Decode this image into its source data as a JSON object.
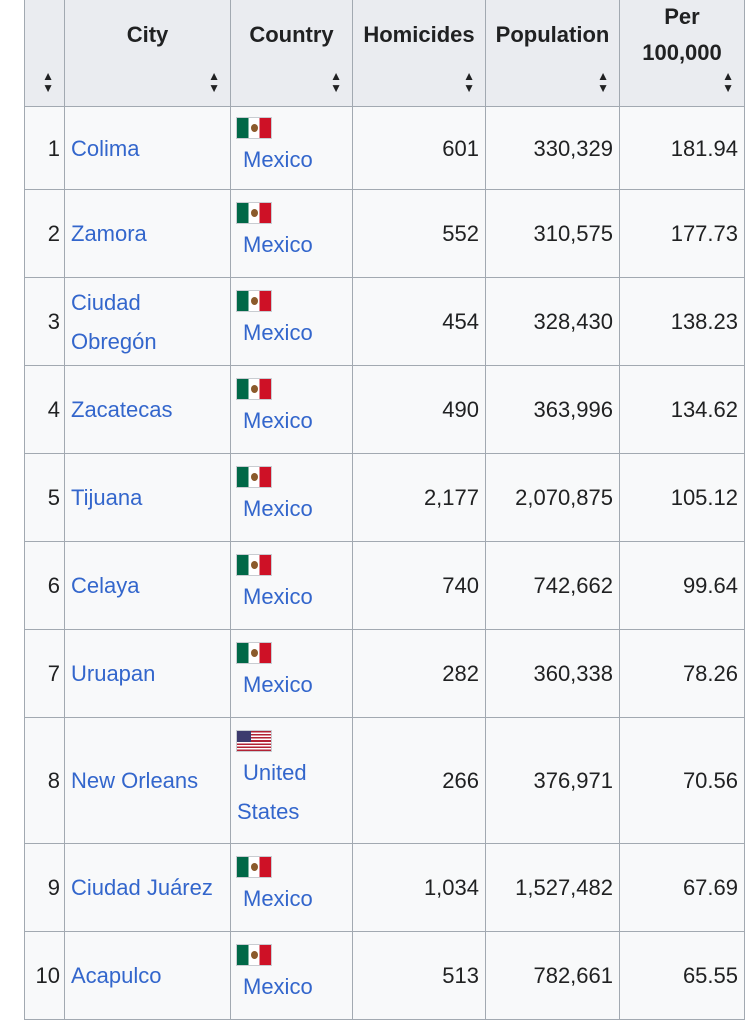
{
  "table": {
    "headers": {
      "rank": "",
      "city": "City",
      "country": "Country",
      "homicides": "Homicides",
      "population": "Population",
      "per100k": "Per 100,000"
    },
    "sort_icon": "sort-both-icon",
    "rows": [
      {
        "rank": "1",
        "city": "Colima",
        "flag": "mexico-flag-icon",
        "country": "Mexico",
        "homicides": "601",
        "population": "330,329",
        "per100k": "181.94"
      },
      {
        "rank": "2",
        "city": "Zamora",
        "flag": "mexico-flag-icon",
        "country": "Mexico",
        "homicides": "552",
        "population": "310,575",
        "per100k": "177.73"
      },
      {
        "rank": "3",
        "city": "Ciudad Obregón",
        "flag": "mexico-flag-icon",
        "country": "Mexico",
        "homicides": "454",
        "population": "328,430",
        "per100k": "138.23"
      },
      {
        "rank": "4",
        "city": "Zacatecas",
        "flag": "mexico-flag-icon",
        "country": "Mexico",
        "homicides": "490",
        "population": "363,996",
        "per100k": "134.62"
      },
      {
        "rank": "5",
        "city": "Tijuana",
        "flag": "mexico-flag-icon",
        "country": "Mexico",
        "homicides": "2,177",
        "population": "2,070,875",
        "per100k": "105.12"
      },
      {
        "rank": "6",
        "city": "Celaya",
        "flag": "mexico-flag-icon",
        "country": "Mexico",
        "homicides": "740",
        "population": "742,662",
        "per100k": "99.64"
      },
      {
        "rank": "7",
        "city": "Uruapan",
        "flag": "mexico-flag-icon",
        "country": "Mexico",
        "homicides": "282",
        "population": "360,338",
        "per100k": "78.26"
      },
      {
        "rank": "8",
        "city": "New Orleans",
        "flag": "united-states-flag-icon",
        "country": "United States",
        "homicides": "266",
        "population": "376,971",
        "per100k": "70.56"
      },
      {
        "rank": "9",
        "city": "Ciudad Juárez",
        "flag": "mexico-flag-icon",
        "country": "Mexico",
        "homicides": "1,034",
        "population": "1,527,482",
        "per100k": "67.69"
      },
      {
        "rank": "10",
        "city": "Acapulco",
        "flag": "mexico-flag-icon",
        "country": "Mexico",
        "homicides": "513",
        "population": "782,661",
        "per100k": "65.55"
      }
    ]
  },
  "colors": {
    "link": "#3366cc",
    "header_bg": "#eaecf0",
    "cell_bg": "#f8f9fa",
    "border": "#a2a9b1"
  }
}
